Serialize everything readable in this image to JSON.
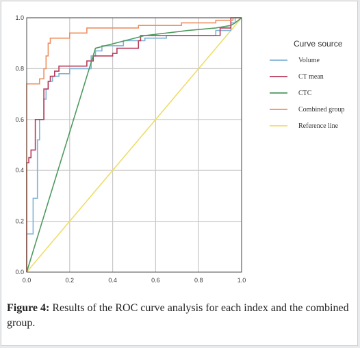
{
  "chart_data": {
    "type": "line",
    "legend_title": "Curve source",
    "legend_position": "right",
    "xlim": [
      0,
      1
    ],
    "ylim": [
      0,
      1
    ],
    "xticks": [
      0.0,
      0.2,
      0.4,
      0.6,
      0.8,
      1.0
    ],
    "yticks": [
      0.0,
      0.2,
      0.4,
      0.6,
      0.8,
      1.0
    ],
    "xtick_labels": [
      "0.0",
      "0.2",
      "0.4",
      "0.6",
      "0.8",
      "1.0"
    ],
    "ytick_labels": [
      "0.0",
      "0.2",
      "0.4",
      "0.6",
      "0.8",
      "1.0"
    ],
    "grid": true,
    "series": [
      {
        "name": "Volume",
        "color": "#7fb2d9",
        "step": true,
        "points": [
          [
            0,
            0
          ],
          [
            0,
            0.15
          ],
          [
            0.03,
            0.15
          ],
          [
            0.03,
            0.29
          ],
          [
            0.05,
            0.29
          ],
          [
            0.05,
            0.52
          ],
          [
            0.06,
            0.52
          ],
          [
            0.06,
            0.6
          ],
          [
            0.08,
            0.6
          ],
          [
            0.08,
            0.68
          ],
          [
            0.09,
            0.68
          ],
          [
            0.09,
            0.72
          ],
          [
            0.1,
            0.72
          ],
          [
            0.1,
            0.75
          ],
          [
            0.12,
            0.75
          ],
          [
            0.12,
            0.77
          ],
          [
            0.15,
            0.77
          ],
          [
            0.15,
            0.78
          ],
          [
            0.2,
            0.78
          ],
          [
            0.2,
            0.8
          ],
          [
            0.3,
            0.8
          ],
          [
            0.3,
            0.85
          ],
          [
            0.32,
            0.85
          ],
          [
            0.32,
            0.87
          ],
          [
            0.35,
            0.87
          ],
          [
            0.35,
            0.89
          ],
          [
            0.45,
            0.89
          ],
          [
            0.45,
            0.91
          ],
          [
            0.55,
            0.91
          ],
          [
            0.55,
            0.92
          ],
          [
            0.65,
            0.92
          ],
          [
            0.65,
            0.93
          ],
          [
            0.88,
            0.93
          ],
          [
            0.88,
            0.95
          ],
          [
            0.95,
            0.95
          ],
          [
            0.95,
            0.98
          ],
          [
            0.97,
            0.98
          ],
          [
            0.97,
            1.0
          ],
          [
            1.0,
            1.0
          ]
        ]
      },
      {
        "name": "CT mean",
        "color": "#b83a5a",
        "step": true,
        "points": [
          [
            0,
            0
          ],
          [
            0,
            0.43
          ],
          [
            0.01,
            0.43
          ],
          [
            0.01,
            0.45
          ],
          [
            0.02,
            0.45
          ],
          [
            0.02,
            0.48
          ],
          [
            0.04,
            0.48
          ],
          [
            0.04,
            0.6
          ],
          [
            0.08,
            0.6
          ],
          [
            0.08,
            0.72
          ],
          [
            0.1,
            0.72
          ],
          [
            0.1,
            0.75
          ],
          [
            0.11,
            0.75
          ],
          [
            0.11,
            0.77
          ],
          [
            0.13,
            0.77
          ],
          [
            0.13,
            0.79
          ],
          [
            0.15,
            0.79
          ],
          [
            0.15,
            0.81
          ],
          [
            0.28,
            0.81
          ],
          [
            0.28,
            0.83
          ],
          [
            0.31,
            0.83
          ],
          [
            0.31,
            0.85
          ],
          [
            0.4,
            0.85
          ],
          [
            0.4,
            0.86
          ],
          [
            0.42,
            0.86
          ],
          [
            0.42,
            0.88
          ],
          [
            0.52,
            0.88
          ],
          [
            0.52,
            0.91
          ],
          [
            0.53,
            0.91
          ],
          [
            0.53,
            0.93
          ],
          [
            0.9,
            0.93
          ],
          [
            0.9,
            0.96
          ],
          [
            0.95,
            0.96
          ],
          [
            0.95,
            1.0
          ],
          [
            1.0,
            1.0
          ]
        ]
      },
      {
        "name": "CTC",
        "color": "#4e9a5f",
        "step": false,
        "points": [
          [
            0,
            0
          ],
          [
            0.32,
            0.88
          ],
          [
            0.55,
            0.93
          ],
          [
            0.75,
            0.95
          ],
          [
            0.88,
            0.96
          ],
          [
            0.95,
            0.97
          ],
          [
            0.97,
            0.98
          ],
          [
            1.0,
            1.0
          ]
        ]
      },
      {
        "name": "Combined group",
        "color": "#ee9060",
        "step": true,
        "points": [
          [
            0,
            0
          ],
          [
            0,
            0.74
          ],
          [
            0.06,
            0.74
          ],
          [
            0.06,
            0.76
          ],
          [
            0.08,
            0.76
          ],
          [
            0.08,
            0.8
          ],
          [
            0.09,
            0.8
          ],
          [
            0.09,
            0.85
          ],
          [
            0.1,
            0.85
          ],
          [
            0.1,
            0.9
          ],
          [
            0.11,
            0.9
          ],
          [
            0.11,
            0.92
          ],
          [
            0.2,
            0.92
          ],
          [
            0.2,
            0.94
          ],
          [
            0.28,
            0.94
          ],
          [
            0.28,
            0.96
          ],
          [
            0.52,
            0.96
          ],
          [
            0.52,
            0.97
          ],
          [
            0.72,
            0.97
          ],
          [
            0.72,
            0.98
          ],
          [
            0.88,
            0.98
          ],
          [
            0.88,
            0.99
          ],
          [
            0.96,
            0.99
          ],
          [
            0.96,
            1.0
          ],
          [
            1.0,
            1.0
          ]
        ]
      },
      {
        "name": "Reference line",
        "color": "#eedd66",
        "step": false,
        "points": [
          [
            0,
            0
          ],
          [
            1,
            1
          ]
        ]
      }
    ]
  },
  "caption": {
    "label": "Figure 4:",
    "text": " Results of the ROC curve analysis for each index and the combined group."
  }
}
